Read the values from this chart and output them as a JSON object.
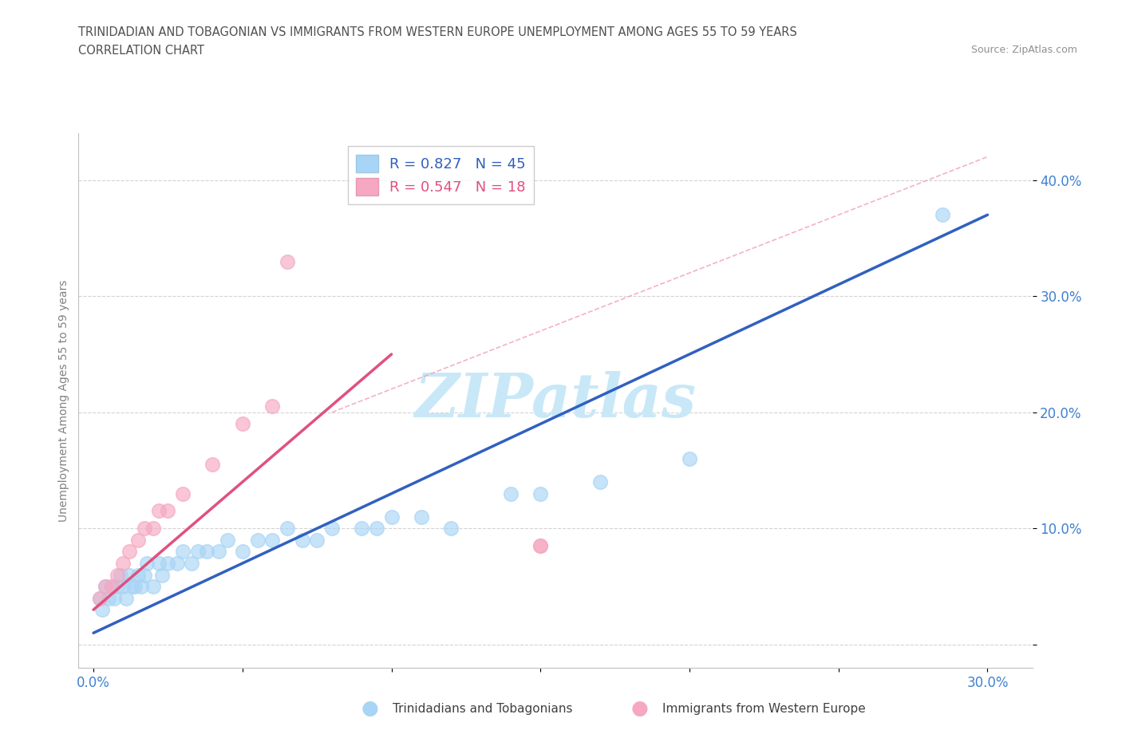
{
  "title_line1": "TRINIDADIAN AND TOBAGONIAN VS IMMIGRANTS FROM WESTERN EUROPE UNEMPLOYMENT AMONG AGES 55 TO 59 YEARS",
  "title_line2": "CORRELATION CHART",
  "source": "Source: ZipAtlas.com",
  "ylabel": "Unemployment Among Ages 55 to 59 years",
  "xlim": [
    -0.005,
    0.315
  ],
  "ylim": [
    -0.02,
    0.44
  ],
  "xticks": [
    0.0,
    0.05,
    0.1,
    0.15,
    0.2,
    0.25,
    0.3
  ],
  "xtick_labels": [
    "0.0%",
    "",
    "",
    "",
    "",
    "",
    "30.0%"
  ],
  "yticks": [
    0.0,
    0.1,
    0.2,
    0.3,
    0.4
  ],
  "ytick_labels": [
    "",
    "10.0%",
    "20.0%",
    "30.0%",
    "40.0%"
  ],
  "blue_scatter_color": "#A8D4F5",
  "pink_scatter_color": "#F5A8C0",
  "blue_line_color": "#3060C0",
  "pink_line_color": "#E05080",
  "diag_line_color": "#F0A0B8",
  "legend_r1": "R = 0.827",
  "legend_n1": "N = 45",
  "legend_r2": "R = 0.547",
  "legend_n2": "N = 18",
  "watermark": "ZIPatlas",
  "watermark_color": "#C8E8F8",
  "blue_scatter": [
    [
      0.002,
      0.04
    ],
    [
      0.003,
      0.03
    ],
    [
      0.004,
      0.05
    ],
    [
      0.005,
      0.04
    ],
    [
      0.006,
      0.05
    ],
    [
      0.007,
      0.04
    ],
    [
      0.008,
      0.05
    ],
    [
      0.009,
      0.06
    ],
    [
      0.01,
      0.05
    ],
    [
      0.011,
      0.04
    ],
    [
      0.012,
      0.06
    ],
    [
      0.013,
      0.05
    ],
    [
      0.014,
      0.05
    ],
    [
      0.015,
      0.06
    ],
    [
      0.016,
      0.05
    ],
    [
      0.017,
      0.06
    ],
    [
      0.018,
      0.07
    ],
    [
      0.02,
      0.05
    ],
    [
      0.022,
      0.07
    ],
    [
      0.023,
      0.06
    ],
    [
      0.025,
      0.07
    ],
    [
      0.028,
      0.07
    ],
    [
      0.03,
      0.08
    ],
    [
      0.033,
      0.07
    ],
    [
      0.035,
      0.08
    ],
    [
      0.038,
      0.08
    ],
    [
      0.042,
      0.08
    ],
    [
      0.045,
      0.09
    ],
    [
      0.05,
      0.08
    ],
    [
      0.055,
      0.09
    ],
    [
      0.06,
      0.09
    ],
    [
      0.065,
      0.1
    ],
    [
      0.07,
      0.09
    ],
    [
      0.075,
      0.09
    ],
    [
      0.08,
      0.1
    ],
    [
      0.09,
      0.1
    ],
    [
      0.095,
      0.1
    ],
    [
      0.1,
      0.11
    ],
    [
      0.11,
      0.11
    ],
    [
      0.12,
      0.1
    ],
    [
      0.14,
      0.13
    ],
    [
      0.15,
      0.13
    ],
    [
      0.17,
      0.14
    ],
    [
      0.2,
      0.16
    ],
    [
      0.285,
      0.37
    ]
  ],
  "pink_scatter": [
    [
      0.002,
      0.04
    ],
    [
      0.004,
      0.05
    ],
    [
      0.006,
      0.05
    ],
    [
      0.008,
      0.06
    ],
    [
      0.01,
      0.07
    ],
    [
      0.012,
      0.08
    ],
    [
      0.015,
      0.09
    ],
    [
      0.017,
      0.1
    ],
    [
      0.02,
      0.1
    ],
    [
      0.022,
      0.115
    ],
    [
      0.025,
      0.115
    ],
    [
      0.03,
      0.13
    ],
    [
      0.04,
      0.155
    ],
    [
      0.05,
      0.19
    ],
    [
      0.06,
      0.205
    ],
    [
      0.065,
      0.33
    ],
    [
      0.15,
      0.085
    ],
    [
      0.15,
      0.085
    ]
  ],
  "blue_line_x": [
    0.0,
    0.3
  ],
  "blue_line_y": [
    0.01,
    0.37
  ],
  "pink_line_x": [
    0.0,
    0.1
  ],
  "pink_line_y": [
    0.03,
    0.25
  ],
  "diag_line_x": [
    0.08,
    0.3
  ],
  "diag_line_y": [
    0.2,
    0.42
  ]
}
